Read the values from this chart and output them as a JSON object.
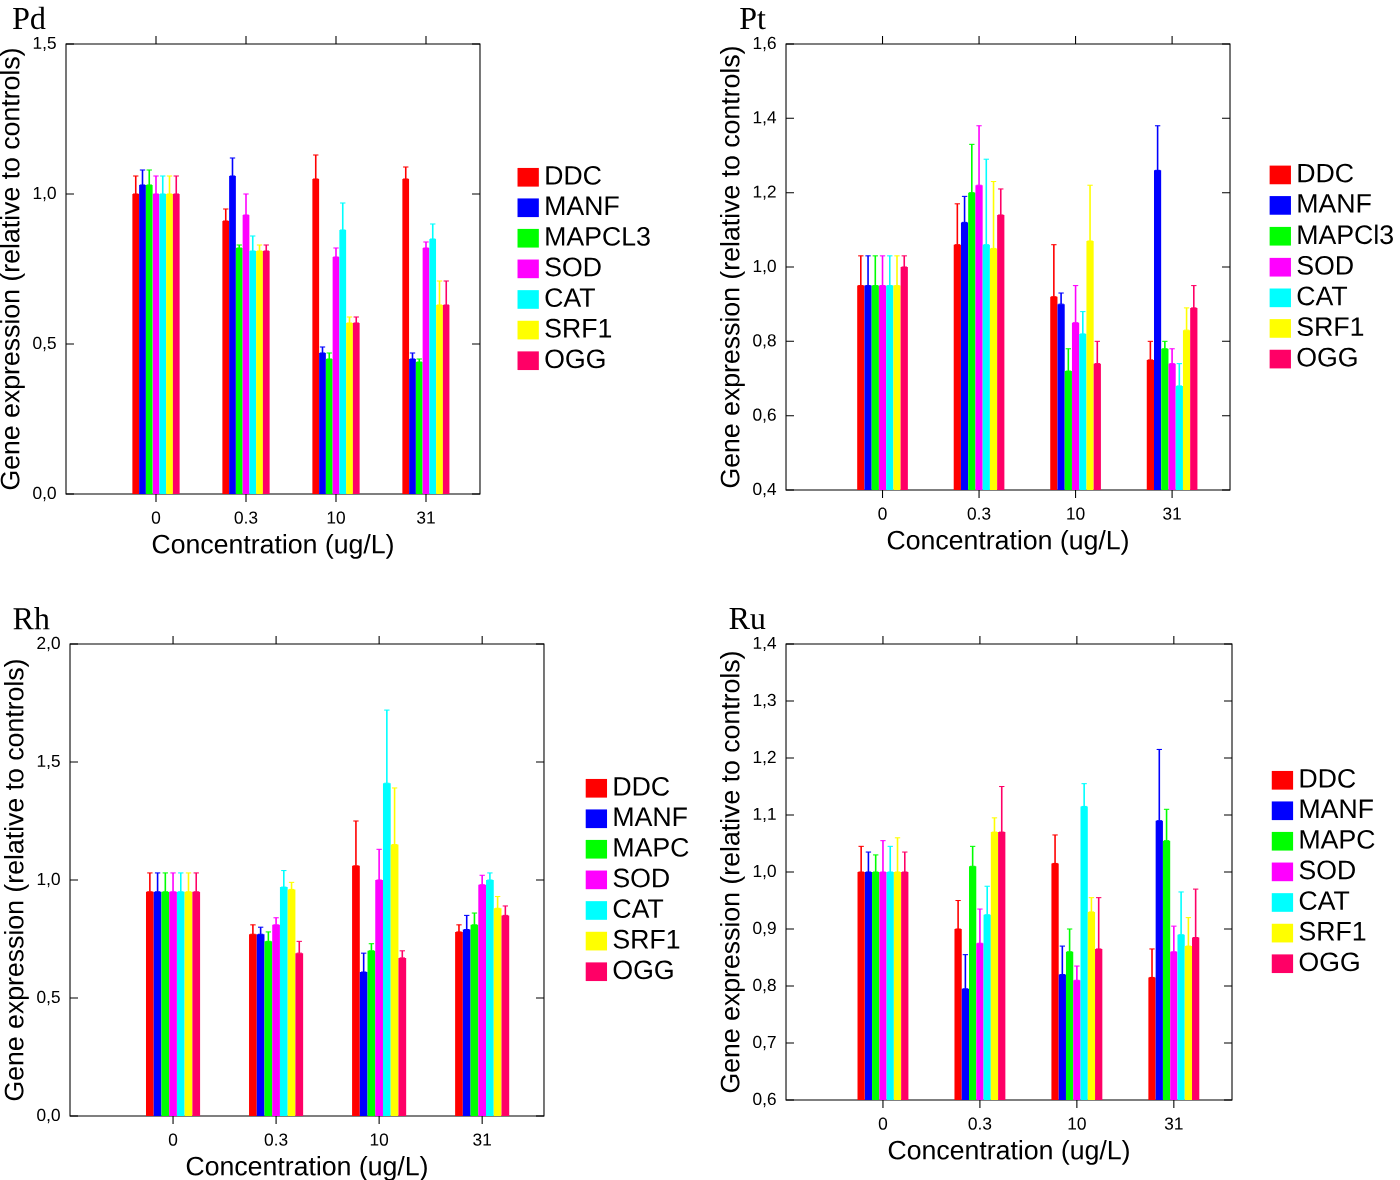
{
  "chart_data": [
    {
      "type": "bar",
      "title": "Pd",
      "xlabel": "Concentration (ug/L)",
      "ylabel": "Gene expression (relative to controls)",
      "categories": [
        "0",
        "0.3",
        "10",
        "31"
      ],
      "ylim": [
        0,
        1.5
      ],
      "yticks": [
        {
          "value": 0,
          "label": "0,0"
        },
        {
          "value": 0.5,
          "label": "0,5"
        },
        {
          "value": 1.0,
          "label": "1,0"
        },
        {
          "value": 1.5,
          "label": "1,5"
        }
      ],
      "legend": "right",
      "series": [
        {
          "name": "DDC",
          "color": "#ff0000",
          "values": [
            1.0,
            0.91,
            1.05,
            1.05
          ],
          "errors": [
            [
              1.0,
              1.06
            ],
            [
              0.91,
              0.95
            ],
            [
              1.05,
              1.13
            ],
            [
              1.05,
              1.09
            ]
          ]
        },
        {
          "name": "MANF",
          "color": "#0000ff",
          "values": [
            1.03,
            1.06,
            0.47,
            0.45
          ],
          "errors": [
            [
              1.03,
              1.08
            ],
            [
              1.06,
              1.12
            ],
            [
              0.47,
              0.49
            ],
            [
              0.45,
              0.47
            ]
          ]
        },
        {
          "name": "MAPCL3",
          "color": "#00ff00",
          "values": [
            1.03,
            0.82,
            0.45,
            0.44
          ],
          "errors": [
            [
              1.03,
              1.08
            ],
            [
              0.82,
              0.83
            ],
            [
              0.45,
              0.47
            ],
            [
              0.44,
              0.45
            ]
          ]
        },
        {
          "name": "SOD",
          "color": "#ff00ff",
          "values": [
            1.0,
            0.93,
            0.79,
            0.82
          ],
          "errors": [
            [
              1.0,
              1.06
            ],
            [
              0.93,
              1.0
            ],
            [
              0.79,
              0.82
            ],
            [
              0.82,
              0.84
            ]
          ]
        },
        {
          "name": "CAT",
          "color": "#00ffff",
          "values": [
            1.0,
            0.81,
            0.88,
            0.85
          ],
          "errors": [
            [
              1.0,
              1.06
            ],
            [
              0.81,
              0.86
            ],
            [
              0.88,
              0.97
            ],
            [
              0.85,
              0.9
            ]
          ]
        },
        {
          "name": "SRF1",
          "color": "#ffff00",
          "values": [
            1.0,
            0.81,
            0.57,
            0.63
          ],
          "errors": [
            [
              1.0,
              1.06
            ],
            [
              0.81,
              0.83
            ],
            [
              0.57,
              0.59
            ],
            [
              0.63,
              0.71
            ]
          ]
        },
        {
          "name": "OGG",
          "color": "#ff0066",
          "values": [
            1.0,
            0.81,
            0.57,
            0.63
          ],
          "errors": [
            [
              1.0,
              1.06
            ],
            [
              0.81,
              0.83
            ],
            [
              0.57,
              0.59
            ],
            [
              0.63,
              0.71
            ]
          ]
        }
      ]
    },
    {
      "type": "bar",
      "title": "Pt",
      "xlabel": "Concentration (ug/L)",
      "ylabel": "Gene expression (relative to controls)",
      "categories": [
        "0",
        "0.3",
        "10",
        "31"
      ],
      "ylim": [
        0.4,
        1.6
      ],
      "yticks": [
        {
          "value": 0.4,
          "label": "0,4"
        },
        {
          "value": 0.6,
          "label": "0,6"
        },
        {
          "value": 0.8,
          "label": "0,8"
        },
        {
          "value": 1.0,
          "label": "1,0"
        },
        {
          "value": 1.2,
          "label": "1,2"
        },
        {
          "value": 1.4,
          "label": "1,4"
        },
        {
          "value": 1.6,
          "label": "1,6"
        }
      ],
      "legend": "right",
      "series": [
        {
          "name": "DDC",
          "color": "#ff0000",
          "values": [
            0.95,
            1.06,
            0.92,
            0.75
          ],
          "errors": [
            [
              0.95,
              1.03
            ],
            [
              1.06,
              1.17
            ],
            [
              0.92,
              1.06
            ],
            [
              0.75,
              0.8
            ]
          ]
        },
        {
          "name": "MANF",
          "color": "#0000ff",
          "values": [
            0.95,
            1.12,
            0.9,
            1.26
          ],
          "errors": [
            [
              0.95,
              1.03
            ],
            [
              1.12,
              1.19
            ],
            [
              0.9,
              0.93
            ],
            [
              1.26,
              1.38
            ]
          ]
        },
        {
          "name": "MAPCl3",
          "color": "#00ff00",
          "values": [
            0.95,
            1.2,
            0.72,
            0.78
          ],
          "errors": [
            [
              0.95,
              1.03
            ],
            [
              1.2,
              1.33
            ],
            [
              0.72,
              0.78
            ],
            [
              0.78,
              0.8
            ]
          ]
        },
        {
          "name": "SOD",
          "color": "#ff00ff",
          "values": [
            0.95,
            1.22,
            0.85,
            0.74
          ],
          "errors": [
            [
              0.95,
              1.03
            ],
            [
              1.22,
              1.38
            ],
            [
              0.85,
              0.95
            ],
            [
              0.74,
              0.78
            ]
          ]
        },
        {
          "name": "CAT",
          "color": "#00ffff",
          "values": [
            0.95,
            1.06,
            0.82,
            0.68
          ],
          "errors": [
            [
              0.95,
              1.03
            ],
            [
              1.06,
              1.29
            ],
            [
              0.82,
              0.88
            ],
            [
              0.68,
              0.74
            ]
          ]
        },
        {
          "name": "SRF1",
          "color": "#ffff00",
          "values": [
            0.95,
            1.05,
            1.07,
            0.83
          ],
          "errors": [
            [
              0.95,
              1.03
            ],
            [
              1.05,
              1.23
            ],
            [
              1.07,
              1.22
            ],
            [
              0.83,
              0.89
            ]
          ]
        },
        {
          "name": "OGG",
          "color": "#ff0066",
          "values": [
            1.0,
            1.14,
            0.74,
            0.89
          ],
          "errors": [
            [
              1.0,
              1.03
            ],
            [
              1.14,
              1.21
            ],
            [
              0.74,
              0.8
            ],
            [
              0.89,
              0.95
            ]
          ]
        }
      ]
    },
    {
      "type": "bar",
      "title": "Rh",
      "xlabel": "Concentration (ug/L)",
      "ylabel": "Gene expression (relative to controls)",
      "categories": [
        "0",
        "0.3",
        "10",
        "31"
      ],
      "ylim": [
        0,
        2.0
      ],
      "yticks": [
        {
          "value": 0,
          "label": "0,0"
        },
        {
          "value": 0.5,
          "label": "0,5"
        },
        {
          "value": 1.0,
          "label": "1,0"
        },
        {
          "value": 1.5,
          "label": "1,5"
        },
        {
          "value": 2.0,
          "label": "2,0"
        }
      ],
      "legend": "right",
      "series": [
        {
          "name": "DDC",
          "color": "#ff0000",
          "values": [
            0.95,
            0.77,
            1.06,
            0.78
          ],
          "errors": [
            [
              0.95,
              1.03
            ],
            [
              0.77,
              0.81
            ],
            [
              1.06,
              1.25
            ],
            [
              0.78,
              0.81
            ]
          ]
        },
        {
          "name": "MANF",
          "color": "#0000ff",
          "values": [
            0.95,
            0.77,
            0.61,
            0.79
          ],
          "errors": [
            [
              0.95,
              1.03
            ],
            [
              0.77,
              0.8
            ],
            [
              0.61,
              0.69
            ],
            [
              0.79,
              0.85
            ]
          ]
        },
        {
          "name": "MAPC",
          "color": "#00ff00",
          "values": [
            0.95,
            0.74,
            0.7,
            0.81
          ],
          "errors": [
            [
              0.95,
              1.03
            ],
            [
              0.74,
              0.78
            ],
            [
              0.7,
              0.73
            ],
            [
              0.81,
              0.86
            ]
          ]
        },
        {
          "name": "SOD",
          "color": "#ff00ff",
          "values": [
            0.95,
            0.81,
            1.0,
            0.98
          ],
          "errors": [
            [
              0.95,
              1.03
            ],
            [
              0.81,
              0.84
            ],
            [
              1.0,
              1.13
            ],
            [
              0.98,
              1.02
            ]
          ]
        },
        {
          "name": "CAT",
          "color": "#00ffff",
          "values": [
            0.95,
            0.97,
            1.41,
            1.0
          ],
          "errors": [
            [
              0.95,
              1.03
            ],
            [
              0.97,
              1.04
            ],
            [
              1.41,
              1.72
            ],
            [
              1.0,
              1.03
            ]
          ]
        },
        {
          "name": "SRF1",
          "color": "#ffff00",
          "values": [
            0.95,
            0.96,
            1.15,
            0.88
          ],
          "errors": [
            [
              0.95,
              1.03
            ],
            [
              0.96,
              0.99
            ],
            [
              1.15,
              1.39
            ],
            [
              0.88,
              0.93
            ]
          ]
        },
        {
          "name": "OGG",
          "color": "#ff0066",
          "values": [
            0.95,
            0.69,
            0.67,
            0.85
          ],
          "errors": [
            [
              0.95,
              1.03
            ],
            [
              0.69,
              0.74
            ],
            [
              0.67,
              0.7
            ],
            [
              0.85,
              0.89
            ]
          ]
        }
      ]
    },
    {
      "type": "bar",
      "title": "Ru",
      "xlabel": "Concentration (ug/L)",
      "ylabel": "Gene expression (relative to controls)",
      "categories": [
        "0",
        "0.3",
        "10",
        "31"
      ],
      "ylim": [
        0.6,
        1.4
      ],
      "yticks": [
        {
          "value": 0.6,
          "label": "0,6"
        },
        {
          "value": 0.7,
          "label": "0,7"
        },
        {
          "value": 0.8,
          "label": "0,8"
        },
        {
          "value": 0.9,
          "label": "0,9"
        },
        {
          "value": 1.0,
          "label": "1,0"
        },
        {
          "value": 1.1,
          "label": "1,1"
        },
        {
          "value": 1.2,
          "label": "1,2"
        },
        {
          "value": 1.3,
          "label": "1,3"
        },
        {
          "value": 1.4,
          "label": "1,4"
        }
      ],
      "legend": "right",
      "series": [
        {
          "name": "DDC",
          "color": "#ff0000",
          "values": [
            1.0,
            0.9,
            1.015,
            0.815
          ],
          "errors": [
            [
              1.0,
              1.045
            ],
            [
              0.9,
              0.95
            ],
            [
              1.015,
              1.065
            ],
            [
              0.815,
              0.865
            ]
          ]
        },
        {
          "name": "MANF",
          "color": "#0000ff",
          "values": [
            1.0,
            0.795,
            0.82,
            1.09
          ],
          "errors": [
            [
              1.0,
              1.035
            ],
            [
              0.795,
              0.855
            ],
            [
              0.82,
              0.87
            ],
            [
              1.09,
              1.215
            ]
          ]
        },
        {
          "name": "MAPC",
          "color": "#00ff00",
          "values": [
            1.0,
            1.01,
            0.86,
            1.055
          ],
          "errors": [
            [
              1.0,
              1.03
            ],
            [
              1.01,
              1.045
            ],
            [
              0.86,
              0.9
            ],
            [
              1.055,
              1.11
            ]
          ]
        },
        {
          "name": "SOD",
          "color": "#ff00ff",
          "values": [
            1.0,
            0.875,
            0.81,
            0.86
          ],
          "errors": [
            [
              1.0,
              1.055
            ],
            [
              0.875,
              0.935
            ],
            [
              0.81,
              0.835
            ],
            [
              0.86,
              0.905
            ]
          ]
        },
        {
          "name": "CAT",
          "color": "#00ffff",
          "values": [
            1.0,
            0.925,
            1.115,
            0.89
          ],
          "errors": [
            [
              1.0,
              1.045
            ],
            [
              0.925,
              0.975
            ],
            [
              1.115,
              1.155
            ],
            [
              0.89,
              0.965
            ]
          ]
        },
        {
          "name": "SRF1",
          "color": "#ffff00",
          "values": [
            1.0,
            1.07,
            0.93,
            0.87
          ],
          "errors": [
            [
              1.0,
              1.06
            ],
            [
              1.07,
              1.095
            ],
            [
              0.93,
              0.955
            ],
            [
              0.87,
              0.92
            ]
          ]
        },
        {
          "name": "OGG",
          "color": "#ff0066",
          "values": [
            1.0,
            1.07,
            0.865,
            0.885
          ],
          "errors": [
            [
              1.0,
              1.035
            ],
            [
              1.07,
              1.15
            ],
            [
              0.865,
              0.955
            ],
            [
              0.885,
              0.97
            ]
          ]
        }
      ]
    }
  ]
}
